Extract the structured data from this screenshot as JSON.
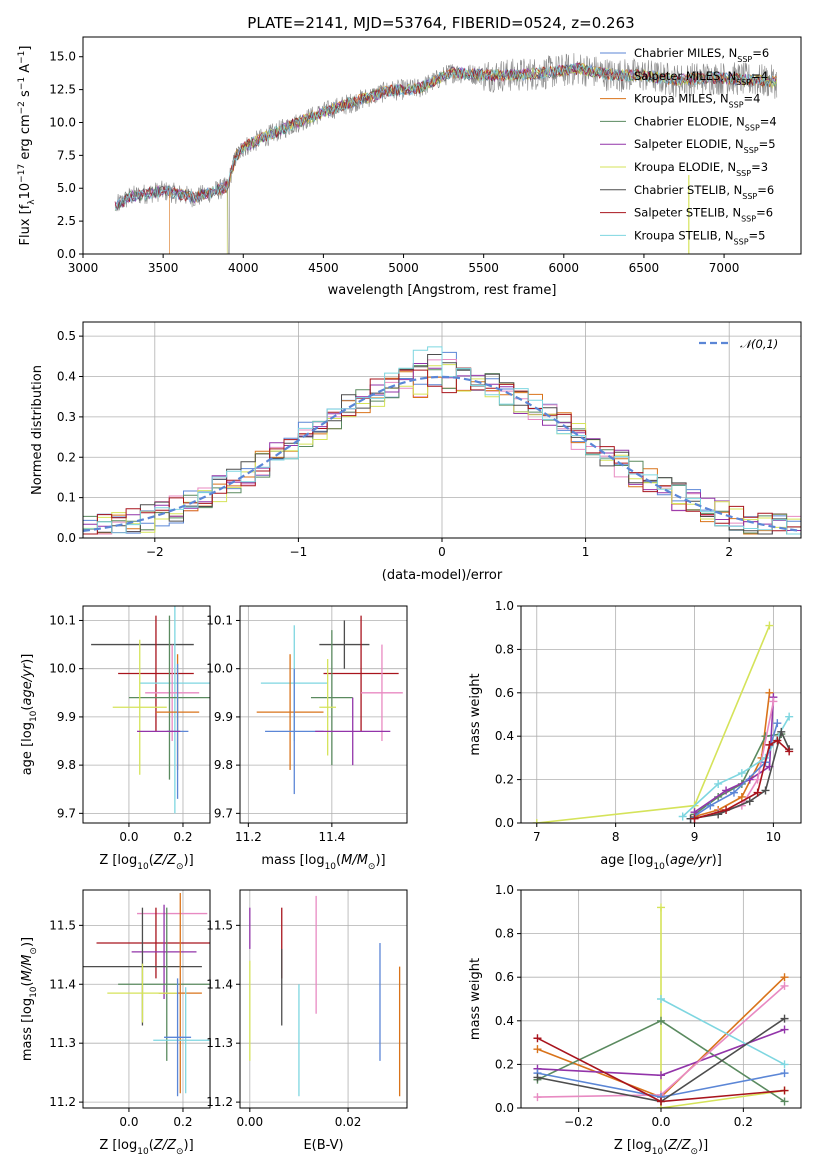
{
  "figure": {
    "title": "PLATE=2141, MJD=53764, FIBERID=0524, z=0.263"
  },
  "models": [
    {
      "key": "chabrier-miles",
      "label": "Chabrier MILES, N",
      "nssp": "6",
      "color": "#5b86d6"
    },
    {
      "key": "salpeter-miles",
      "label": "Salpeter MILES, N",
      "nssp": "4",
      "color": "#9a8e8e"
    },
    {
      "key": "kroupa-miles",
      "label": "Kroupa MILES, N",
      "nssp": "4",
      "color": "#d9731a"
    },
    {
      "key": "chabrier-elodie",
      "label": "Chabrier ELODIE, N",
      "nssp": "4",
      "color": "#5a8a5f"
    },
    {
      "key": "salpeter-elodie",
      "label": "Salpeter ELODIE, N",
      "nssp": "5",
      "color": "#9234a9"
    },
    {
      "key": "kroupa-elodie",
      "label": "Kroupa ELODIE, N",
      "nssp": "3",
      "color": "#d5e35a"
    },
    {
      "key": "chabrier-stelib",
      "label": "Chabrier STELIB, N",
      "nssp": "6",
      "color": "#4d4d4d"
    },
    {
      "key": "salpeter-stelib",
      "label": "Salpeter STELIB, N",
      "nssp": "6",
      "color": "#a8141d"
    },
    {
      "key": "kroupa-stelib",
      "label": "Kroupa STELIB, N",
      "nssp": "5",
      "color": "#7ed6e0"
    }
  ],
  "nssp_sub": "SSP",
  "extra_colors": {
    "pink": "#e88ac2"
  },
  "chart_data": [
    {
      "id": "spectrum",
      "type": "line",
      "title": "PLATE=2141, MJD=53764, FIBERID=0524, z=0.263",
      "xlabel": "wavelength [Angstrom, rest frame]",
      "ylabel": "Flux [f_λ10^-17 erg cm^-2 s^-1 A^-1]",
      "xlim": [
        3000,
        7480
      ],
      "ylim": [
        0,
        16.5
      ],
      "xticks": [
        3000,
        3500,
        4000,
        4500,
        5000,
        5500,
        6000,
        6500,
        7000
      ],
      "yticks": [
        "0.0",
        "2.5",
        "5.0",
        "7.5",
        "10.0",
        "12.5",
        "15.0"
      ],
      "continuum": {
        "x": [
          3210,
          3300,
          3500,
          3700,
          3900,
          3950,
          4000,
          4100,
          4300,
          4500,
          4700,
          4900,
          5100,
          5300,
          5500,
          5700,
          5900,
          6100,
          6300,
          6500,
          6700,
          6900,
          7100,
          7300
        ],
        "y": [
          3.7,
          4.4,
          4.8,
          4.3,
          5.1,
          7.3,
          8.1,
          8.7,
          9.8,
          10.8,
          11.6,
          12.4,
          12.6,
          13.8,
          13.6,
          13.6,
          13.8,
          14.1,
          13.6,
          13.6,
          13.2,
          13.4,
          13.3,
          13.1
        ]
      },
      "model_starts": [
        3200,
        3200,
        3540,
        3200,
        3200,
        3900,
        3200,
        3200,
        3200
      ],
      "grid": false,
      "legend_loc": "upper right"
    },
    {
      "id": "residual-hist",
      "type": "line",
      "xlabel": "(data-model)/error",
      "ylabel": "Normed distribution",
      "xlim": [
        -2.5,
        2.5
      ],
      "ylim": [
        0,
        0.535
      ],
      "xticks": [
        "−2",
        "−1",
        "0",
        "1",
        "2"
      ],
      "xtick_vals": [
        -2,
        -1,
        0,
        1,
        2
      ],
      "yticks": [
        "0.0",
        "0.1",
        "0.2",
        "0.3",
        "0.4",
        "0.5"
      ],
      "ytick_vals": [
        0,
        0.1,
        0.2,
        0.3,
        0.4,
        0.5
      ],
      "bin_width": 0.1,
      "bin_start": -2.5,
      "legend": "𝒩(0,1)",
      "grid": true,
      "legend_loc": "upper right"
    },
    {
      "id": "age-vs-z",
      "type": "scatter",
      "xlabel": "Z [log₁₀(Z/Z⊙)]",
      "ylabel": "age  [log₁₀(age/yr)]",
      "xlim": [
        -0.17,
        0.3
      ],
      "ylim": [
        9.68,
        10.13
      ],
      "xticks": [
        "0.0",
        "0.2"
      ],
      "xtick_vals": [
        0,
        0.2
      ],
      "yticks": [
        "9.7",
        "9.8",
        "9.9",
        "10.0",
        "10.1"
      ],
      "ytick_vals": [
        9.7,
        9.8,
        9.9,
        10.0,
        10.1
      ],
      "points": [
        {
          "color": "#4d4d4d",
          "x": 0.05,
          "xerr": 0.19,
          "y": 10.05,
          "yerr": 0.0
        },
        {
          "color": "#a8141d",
          "x": 0.1,
          "xerr": 0.14,
          "y": 9.99,
          "yerr": 0.12
        },
        {
          "color": "#7ed6e0",
          "x": 0.17,
          "xerr": 0.13,
          "y": 9.97,
          "yerr": 0.27
        },
        {
          "color": "#e88ac2",
          "x": 0.16,
          "xerr": 0.1,
          "y": 9.95,
          "yerr": 0.1
        },
        {
          "color": "#5a8a5f",
          "x": 0.15,
          "xerr": 0.15,
          "y": 9.94,
          "yerr": 0.17
        },
        {
          "color": "#d5e35a",
          "x": 0.04,
          "xerr": 0.1,
          "y": 9.92,
          "yerr": 0.14
        },
        {
          "color": "#d9731a",
          "x": 0.18,
          "xerr": 0.08,
          "y": 9.91,
          "yerr": 0.12
        },
        {
          "color": "#5b86d6",
          "x": 0.18,
          "xerr": 0.04,
          "y": 9.87,
          "yerr": 0.14
        },
        {
          "color": "#9234a9",
          "x": 0.11,
          "xerr": 0.08,
          "y": 9.87,
          "yerr": 0.0
        }
      ],
      "grid": true
    },
    {
      "id": "age-vs-mass",
      "type": "scatter",
      "xlabel": "mass [log₁₀(M/M⊙)]",
      "xlim": [
        11.18,
        11.58
      ],
      "ylim": [
        9.68,
        10.13
      ],
      "xticks": [
        "11.2",
        "11.4"
      ],
      "xtick_vals": [
        11.2,
        11.4
      ],
      "yticks": [
        "9.7",
        "9.8",
        "9.9",
        "10.0",
        "10.1"
      ],
      "ytick_vals": [
        9.7,
        9.8,
        9.9,
        10.0,
        10.1
      ],
      "points": [
        {
          "color": "#4d4d4d",
          "x": 11.43,
          "xerr": 0.06,
          "y": 10.05,
          "yerr": 0.05
        },
        {
          "color": "#a8141d",
          "x": 11.47,
          "xerr": 0.09,
          "y": 9.99,
          "yerr": 0.12
        },
        {
          "color": "#7ed6e0",
          "x": 11.31,
          "xerr": 0.08,
          "y": 9.97,
          "yerr": 0.12
        },
        {
          "color": "#e88ac2",
          "x": 11.52,
          "xerr": 0.05,
          "y": 9.95,
          "yerr": 0.1
        },
        {
          "color": "#5a8a5f",
          "x": 11.4,
          "xerr": 0.05,
          "y": 9.94,
          "yerr": 0.14
        },
        {
          "color": "#d5e35a",
          "x": 11.39,
          "xerr": 0.02,
          "y": 9.92,
          "yerr": 0.1
        },
        {
          "color": "#d9731a",
          "x": 11.3,
          "xerr": 0.08,
          "y": 9.91,
          "yerr": 0.12
        },
        {
          "color": "#5b86d6",
          "x": 11.31,
          "xerr": 0.07,
          "y": 9.87,
          "yerr": 0.13
        },
        {
          "color": "#9234a9",
          "x": 11.45,
          "xerr": 0.09,
          "y": 9.87,
          "yerr": 0.07
        }
      ],
      "grid": true
    },
    {
      "id": "weight-vs-age",
      "type": "line",
      "xlabel": "age  [log₁₀(age/yr)]",
      "ylabel": "mass weight",
      "xlim": [
        6.8,
        10.35
      ],
      "ylim": [
        0,
        1
      ],
      "xticks": [
        "7",
        "8",
        "9",
        "10"
      ],
      "xtick_vals": [
        7,
        8,
        9,
        10
      ],
      "yticks": [
        "0.0",
        "0.2",
        "0.4",
        "0.6",
        "0.8",
        "1.0"
      ],
      "ytick_vals": [
        0,
        0.2,
        0.4,
        0.6,
        0.8,
        1.0
      ],
      "series": [
        {
          "color": "#d5e35a",
          "x": [
            7.0,
            9.0,
            9.95
          ],
          "y": [
            0.0,
            0.08,
            0.91
          ]
        },
        {
          "color": "#d9731a",
          "x": [
            9.0,
            9.3,
            9.6,
            9.85,
            9.95
          ],
          "y": [
            0.03,
            0.06,
            0.12,
            0.3,
            0.6
          ]
        },
        {
          "color": "#5a8a5f",
          "x": [
            9.0,
            9.3,
            9.6,
            9.9,
            10.1
          ],
          "y": [
            0.04,
            0.12,
            0.18,
            0.4,
            0.41
          ]
        },
        {
          "color": "#9234a9",
          "x": [
            9.0,
            9.4,
            9.7,
            9.95,
            10.0
          ],
          "y": [
            0.05,
            0.15,
            0.2,
            0.26,
            0.58
          ]
        },
        {
          "color": "#e88ac2",
          "x": [
            9.0,
            9.3,
            9.6,
            9.8,
            10.0
          ],
          "y": [
            0.02,
            0.05,
            0.08,
            0.2,
            0.56
          ]
        },
        {
          "color": "#7ed6e0",
          "x": [
            8.85,
            9.3,
            9.6,
            9.9,
            10.2
          ],
          "y": [
            0.03,
            0.18,
            0.23,
            0.3,
            0.49
          ]
        },
        {
          "color": "#5b86d6",
          "x": [
            8.95,
            9.2,
            9.5,
            9.9,
            10.05
          ],
          "y": [
            0.02,
            0.08,
            0.14,
            0.28,
            0.46
          ]
        },
        {
          "color": "#4d4d4d",
          "x": [
            8.95,
            9.3,
            9.7,
            9.9,
            10.1,
            10.2
          ],
          "y": [
            0.02,
            0.04,
            0.1,
            0.15,
            0.42,
            0.34
          ]
        },
        {
          "color": "#a8141d",
          "x": [
            9.0,
            9.4,
            9.8,
            9.95,
            10.05,
            10.2
          ],
          "y": [
            0.02,
            0.06,
            0.14,
            0.36,
            0.38,
            0.33
          ]
        }
      ],
      "grid": true
    },
    {
      "id": "mass-vs-z",
      "type": "scatter",
      "xlabel": "Z [log₁₀(Z/Z⊙)]",
      "ylabel": "mass [log₁₀(M/M⊙)]",
      "xlim": [
        -0.17,
        0.3
      ],
      "ylim": [
        11.19,
        11.56
      ],
      "xticks": [
        "0.0",
        "0.2"
      ],
      "xtick_vals": [
        0,
        0.2
      ],
      "yticks": [
        "11.2",
        "11.3",
        "11.4",
        "11.5"
      ],
      "ytick_vals": [
        11.2,
        11.3,
        11.4,
        11.5
      ],
      "points": [
        {
          "color": "#e88ac2",
          "x": 0.16,
          "xerr": 0.13,
          "y": 11.52,
          "yerr": 0.0
        },
        {
          "color": "#a8141d",
          "x": 0.1,
          "xerr": 0.22,
          "y": 11.47,
          "yerr": 0.06
        },
        {
          "color": "#9234a9",
          "x": 0.13,
          "xerr": 0.12,
          "y": 11.455,
          "yerr": 0.08
        },
        {
          "color": "#4d4d4d",
          "x": 0.05,
          "xerr": 0.22,
          "y": 11.43,
          "yerr": 0.1
        },
        {
          "color": "#5a8a5f",
          "x": 0.14,
          "xerr": 0.18,
          "y": 11.4,
          "yerr": 0.13
        },
        {
          "color": "#d9731a",
          "x": 0.19,
          "xerr": 0.08,
          "y": 11.385,
          "yerr": 0.17
        },
        {
          "color": "#d5e35a",
          "x": 0.05,
          "xerr": 0.13,
          "y": 11.385,
          "yerr": 0.05
        },
        {
          "color": "#7ed6e0",
          "x": 0.21,
          "xerr": 0.12,
          "y": 11.305,
          "yerr": 0.09
        },
        {
          "color": "#5b86d6",
          "x": 0.18,
          "xerr": 0.05,
          "y": 11.31,
          "yerr": 0.1
        }
      ],
      "grid": true
    },
    {
      "id": "mass-vs-ebv",
      "type": "scatter",
      "xlabel": "E(B-V)",
      "xlim": [
        -0.002,
        0.032
      ],
      "ylim": [
        11.19,
        11.56
      ],
      "xticks": [
        "0.00",
        "0.02"
      ],
      "xtick_vals": [
        0,
        0.02
      ],
      "yticks": [
        "11.2",
        "11.3",
        "11.4",
        "11.5"
      ],
      "ytick_vals": [
        11.2,
        11.3,
        11.4,
        11.5
      ],
      "bars": [
        {
          "color": "#9234a9",
          "x": 0.0,
          "y1": 11.46,
          "y2": 11.53
        },
        {
          "color": "#d5e35a",
          "x": 0.0,
          "y1": 11.27,
          "y2": 11.44
        },
        {
          "color": "#a8141d",
          "x": 0.0065,
          "y1": 11.41,
          "y2": 11.53
        },
        {
          "color": "#4d4d4d",
          "x": 0.0065,
          "y1": 11.33,
          "y2": 11.46
        },
        {
          "color": "#7ed6e0",
          "x": 0.01,
          "y1": 11.21,
          "y2": 11.4
        },
        {
          "color": "#e88ac2",
          "x": 0.0135,
          "y1": 11.35,
          "y2": 11.55
        },
        {
          "color": "#5b86d6",
          "x": 0.0265,
          "y1": 11.27,
          "y2": 11.47
        },
        {
          "color": "#d9731a",
          "x": 0.0305,
          "y1": 11.21,
          "y2": 11.43
        }
      ],
      "grid": true
    },
    {
      "id": "weight-vs-z",
      "type": "line",
      "xlabel": "Z [log₁₀(Z/Z⊙)]",
      "ylabel": "mass weight",
      "xlim": [
        -0.34,
        0.34
      ],
      "ylim": [
        0,
        1
      ],
      "xticks": [
        "−0.2",
        "0.0",
        "0.2"
      ],
      "xtick_vals": [
        -0.2,
        0,
        0.2
      ],
      "yticks": [
        "0.0",
        "0.2",
        "0.4",
        "0.6",
        "0.8",
        "1.0"
      ],
      "ytick_vals": [
        0,
        0.2,
        0.4,
        0.6,
        0.8,
        1.0
      ],
      "series": [
        {
          "color": "#d5e35a",
          "x": [
            0.0,
            0.0,
            0.3
          ],
          "y": [
            0.92,
            0.0,
            0.08
          ]
        },
        {
          "color": "#d9731a",
          "x": [
            -0.3,
            0.0,
            0.3
          ],
          "y": [
            0.27,
            0.05,
            0.6
          ]
        },
        {
          "color": "#5a8a5f",
          "x": [
            -0.3,
            0.0,
            0.3
          ],
          "y": [
            0.13,
            0.4,
            0.03
          ]
        },
        {
          "color": "#9234a9",
          "x": [
            -0.3,
            0.0,
            0.3
          ],
          "y": [
            0.18,
            0.15,
            0.36
          ]
        },
        {
          "color": "#e88ac2",
          "x": [
            -0.3,
            0.0,
            0.3
          ],
          "y": [
            0.05,
            0.06,
            0.56
          ]
        },
        {
          "color": "#7ed6e0",
          "x": [
            0.0,
            0.3
          ],
          "y": [
            0.5,
            0.2
          ]
        },
        {
          "color": "#5b86d6",
          "x": [
            -0.3,
            0.0,
            0.3
          ],
          "y": [
            0.16,
            0.05,
            0.16
          ]
        },
        {
          "color": "#4d4d4d",
          "x": [
            -0.3,
            0.0,
            0.3
          ],
          "y": [
            0.14,
            0.03,
            0.41
          ]
        },
        {
          "color": "#a8141d",
          "x": [
            -0.3,
            0.0,
            0.3
          ],
          "y": [
            0.32,
            0.03,
            0.08
          ]
        }
      ],
      "grid": true
    }
  ]
}
